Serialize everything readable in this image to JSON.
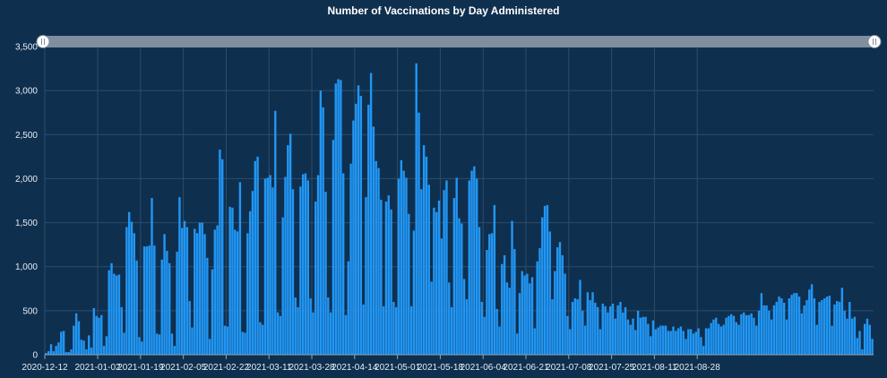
{
  "colors": {
    "background": "#0f2f4f",
    "bar": "#2196f3",
    "grid": "#2d4d6c",
    "scrollbar": "#7f8f9e",
    "handle": "#ffffff",
    "text": "#ffffff"
  },
  "chart_data": {
    "type": "bar",
    "title": "Number of Vaccinations by Day Administered",
    "xlabel": "",
    "ylabel": "",
    "ylim": [
      0,
      3500
    ],
    "yticks": [
      0,
      500,
      1000,
      1500,
      2000,
      2500,
      3000,
      3500
    ],
    "ytick_labels": [
      "0",
      "500",
      "1,000",
      "1,500",
      "2,000",
      "2,500",
      "3,000",
      "3,500"
    ],
    "xtick_labels": [
      "2020-12-12",
      "2021-01-02",
      "2021-01-19",
      "2021-02-05",
      "2021-02-22",
      "2021-03-11",
      "2021-03-28",
      "2021-04-14",
      "2021-05-01",
      "2021-05-18",
      "2021-06-04",
      "2021-06-21",
      "2021-07-08",
      "2021-07-25",
      "2021-08-11",
      "2021-08-28"
    ],
    "start_date": "2020-12-12",
    "grid": true,
    "values": [
      20,
      40,
      120,
      40,
      100,
      140,
      260,
      270,
      30,
      30,
      60,
      330,
      470,
      380,
      170,
      160,
      60,
      220,
      80,
      530,
      440,
      420,
      450,
      100,
      210,
      960,
      1040,
      920,
      900,
      910,
      540,
      250,
      1450,
      1620,
      1510,
      1380,
      1070,
      200,
      150,
      1230,
      1230,
      1240,
      1780,
      1240,
      240,
      230,
      1080,
      1370,
      1180,
      1040,
      240,
      100,
      1170,
      1790,
      1440,
      1520,
      1450,
      610,
      310,
      1430,
      1380,
      1500,
      1500,
      1370,
      1100,
      180,
      970,
      1420,
      1470,
      2330,
      2220,
      330,
      320,
      1680,
      1670,
      1420,
      1400,
      1960,
      260,
      250,
      1380,
      1630,
      1860,
      2200,
      2250,
      370,
      340,
      2000,
      2010,
      2040,
      1900,
      2770,
      480,
      440,
      1560,
      2020,
      2380,
      2510,
      1880,
      650,
      540,
      1910,
      2050,
      2060,
      1980,
      640,
      480,
      1740,
      2040,
      3000,
      2810,
      1850,
      650,
      480,
      2440,
      3080,
      3130,
      3120,
      2060,
      450,
      1060,
      2170,
      2660,
      2850,
      3060,
      2940,
      570,
      1790,
      2840,
      3200,
      2590,
      2200,
      2120,
      1760,
      550,
      1740,
      1810,
      1650,
      600,
      540,
      2000,
      2210,
      2090,
      2010,
      1600,
      550,
      1410,
      3310,
      2750,
      1880,
      2380,
      2250,
      1930,
      830,
      1670,
      1620,
      1750,
      1320,
      1870,
      1980,
      820,
      540,
      1780,
      2010,
      1550,
      1490,
      860,
      630,
      1980,
      2090,
      2140,
      2000,
      1450,
      600,
      430,
      1190,
      1370,
      1380,
      1700,
      520,
      320,
      1030,
      1130,
      820,
      760,
      1520,
      1200,
      240,
      700,
      950,
      900,
      920,
      810,
      880,
      300,
      1060,
      1210,
      1560,
      1690,
      1700,
      1400,
      630,
      950,
      1220,
      1280,
      1130,
      920,
      440,
      290,
      600,
      640,
      630,
      850,
      500,
      330,
      710,
      620,
      710,
      590,
      540,
      290,
      580,
      550,
      480,
      550,
      580,
      410,
      560,
      600,
      480,
      540,
      400,
      340,
      410,
      280,
      500,
      420,
      430,
      430,
      350,
      210,
      390,
      290,
      310,
      330,
      330,
      330,
      270,
      270,
      320,
      270,
      300,
      320,
      270,
      180,
      290,
      290,
      240,
      260,
      300,
      200,
      100,
      300,
      300,
      360,
      400,
      420,
      350,
      320,
      340,
      420,
      440,
      460,
      440,
      370,
      340,
      460,
      480,
      450,
      450,
      470,
      420,
      330,
      500,
      700,
      560,
      560,
      500,
      400,
      560,
      600,
      660,
      640,
      590,
      400,
      640,
      680,
      700,
      700,
      660,
      470,
      560,
      620,
      740,
      800,
      640,
      340,
      600,
      620,
      640,
      660,
      670,
      330,
      570,
      610,
      600,
      760,
      500,
      410,
      600,
      410,
      430,
      190,
      270,
      60,
      350,
      410,
      340,
      180
    ]
  }
}
